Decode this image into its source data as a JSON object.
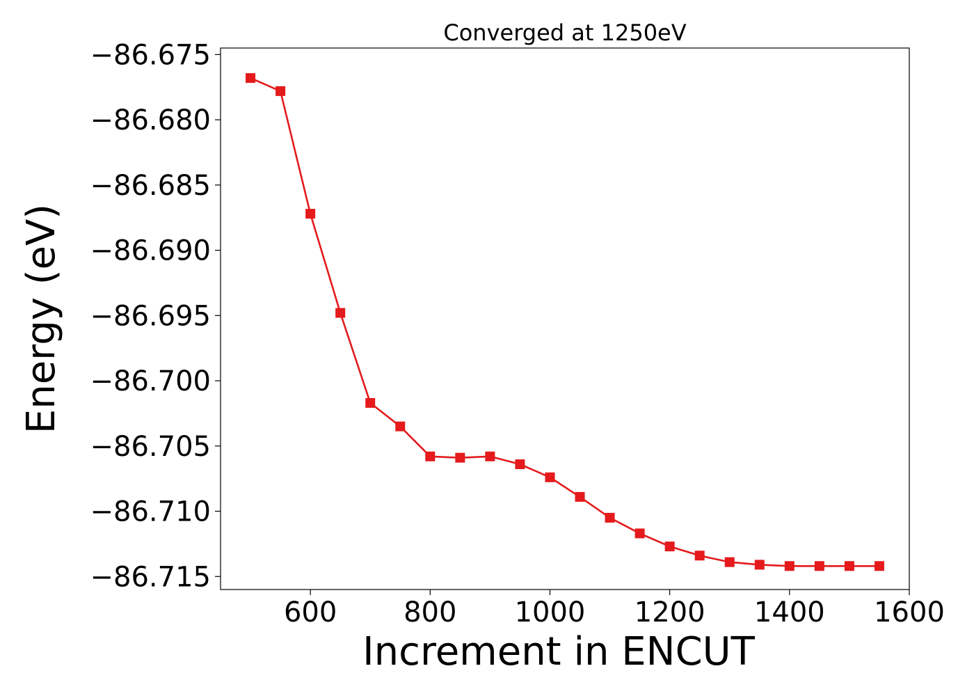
{
  "chart_data": {
    "type": "line",
    "title": "Converged at 1250eV",
    "xlabel": "Increment in ENCUT",
    "ylabel": "Energy (eV)",
    "xlim": [
      450,
      1600
    ],
    "ylim": [
      -86.716,
      -86.6745
    ],
    "xticks": [
      600,
      800,
      1000,
      1200,
      1400,
      1600
    ],
    "yticks": [
      -86.675,
      -86.68,
      -86.685,
      -86.69,
      -86.695,
      -86.7,
      -86.705,
      -86.71,
      -86.715
    ],
    "ytick_labels": [
      "−86.675",
      "−86.680",
      "−86.685",
      "−86.690",
      "−86.695",
      "−86.700",
      "−86.705",
      "−86.710",
      "−86.715"
    ],
    "grid": false,
    "series": [
      {
        "color": "#e41a1c",
        "marker": "square",
        "x": [
          500,
          550,
          600,
          650,
          700,
          750,
          800,
          850,
          900,
          950,
          1000,
          1050,
          1100,
          1150,
          1200,
          1250,
          1300,
          1350,
          1400,
          1450,
          1500,
          1550
        ],
        "y": [
          -86.6768,
          -86.6778,
          -86.6872,
          -86.6948,
          -86.7017,
          -86.7035,
          -86.7058,
          -86.7059,
          -86.7058,
          -86.7064,
          -86.7074,
          -86.7089,
          -86.7105,
          -86.7117,
          -86.7127,
          -86.7134,
          -86.7139,
          -86.7141,
          -86.7142,
          -86.7142,
          -86.7142,
          -86.7142
        ]
      }
    ]
  }
}
